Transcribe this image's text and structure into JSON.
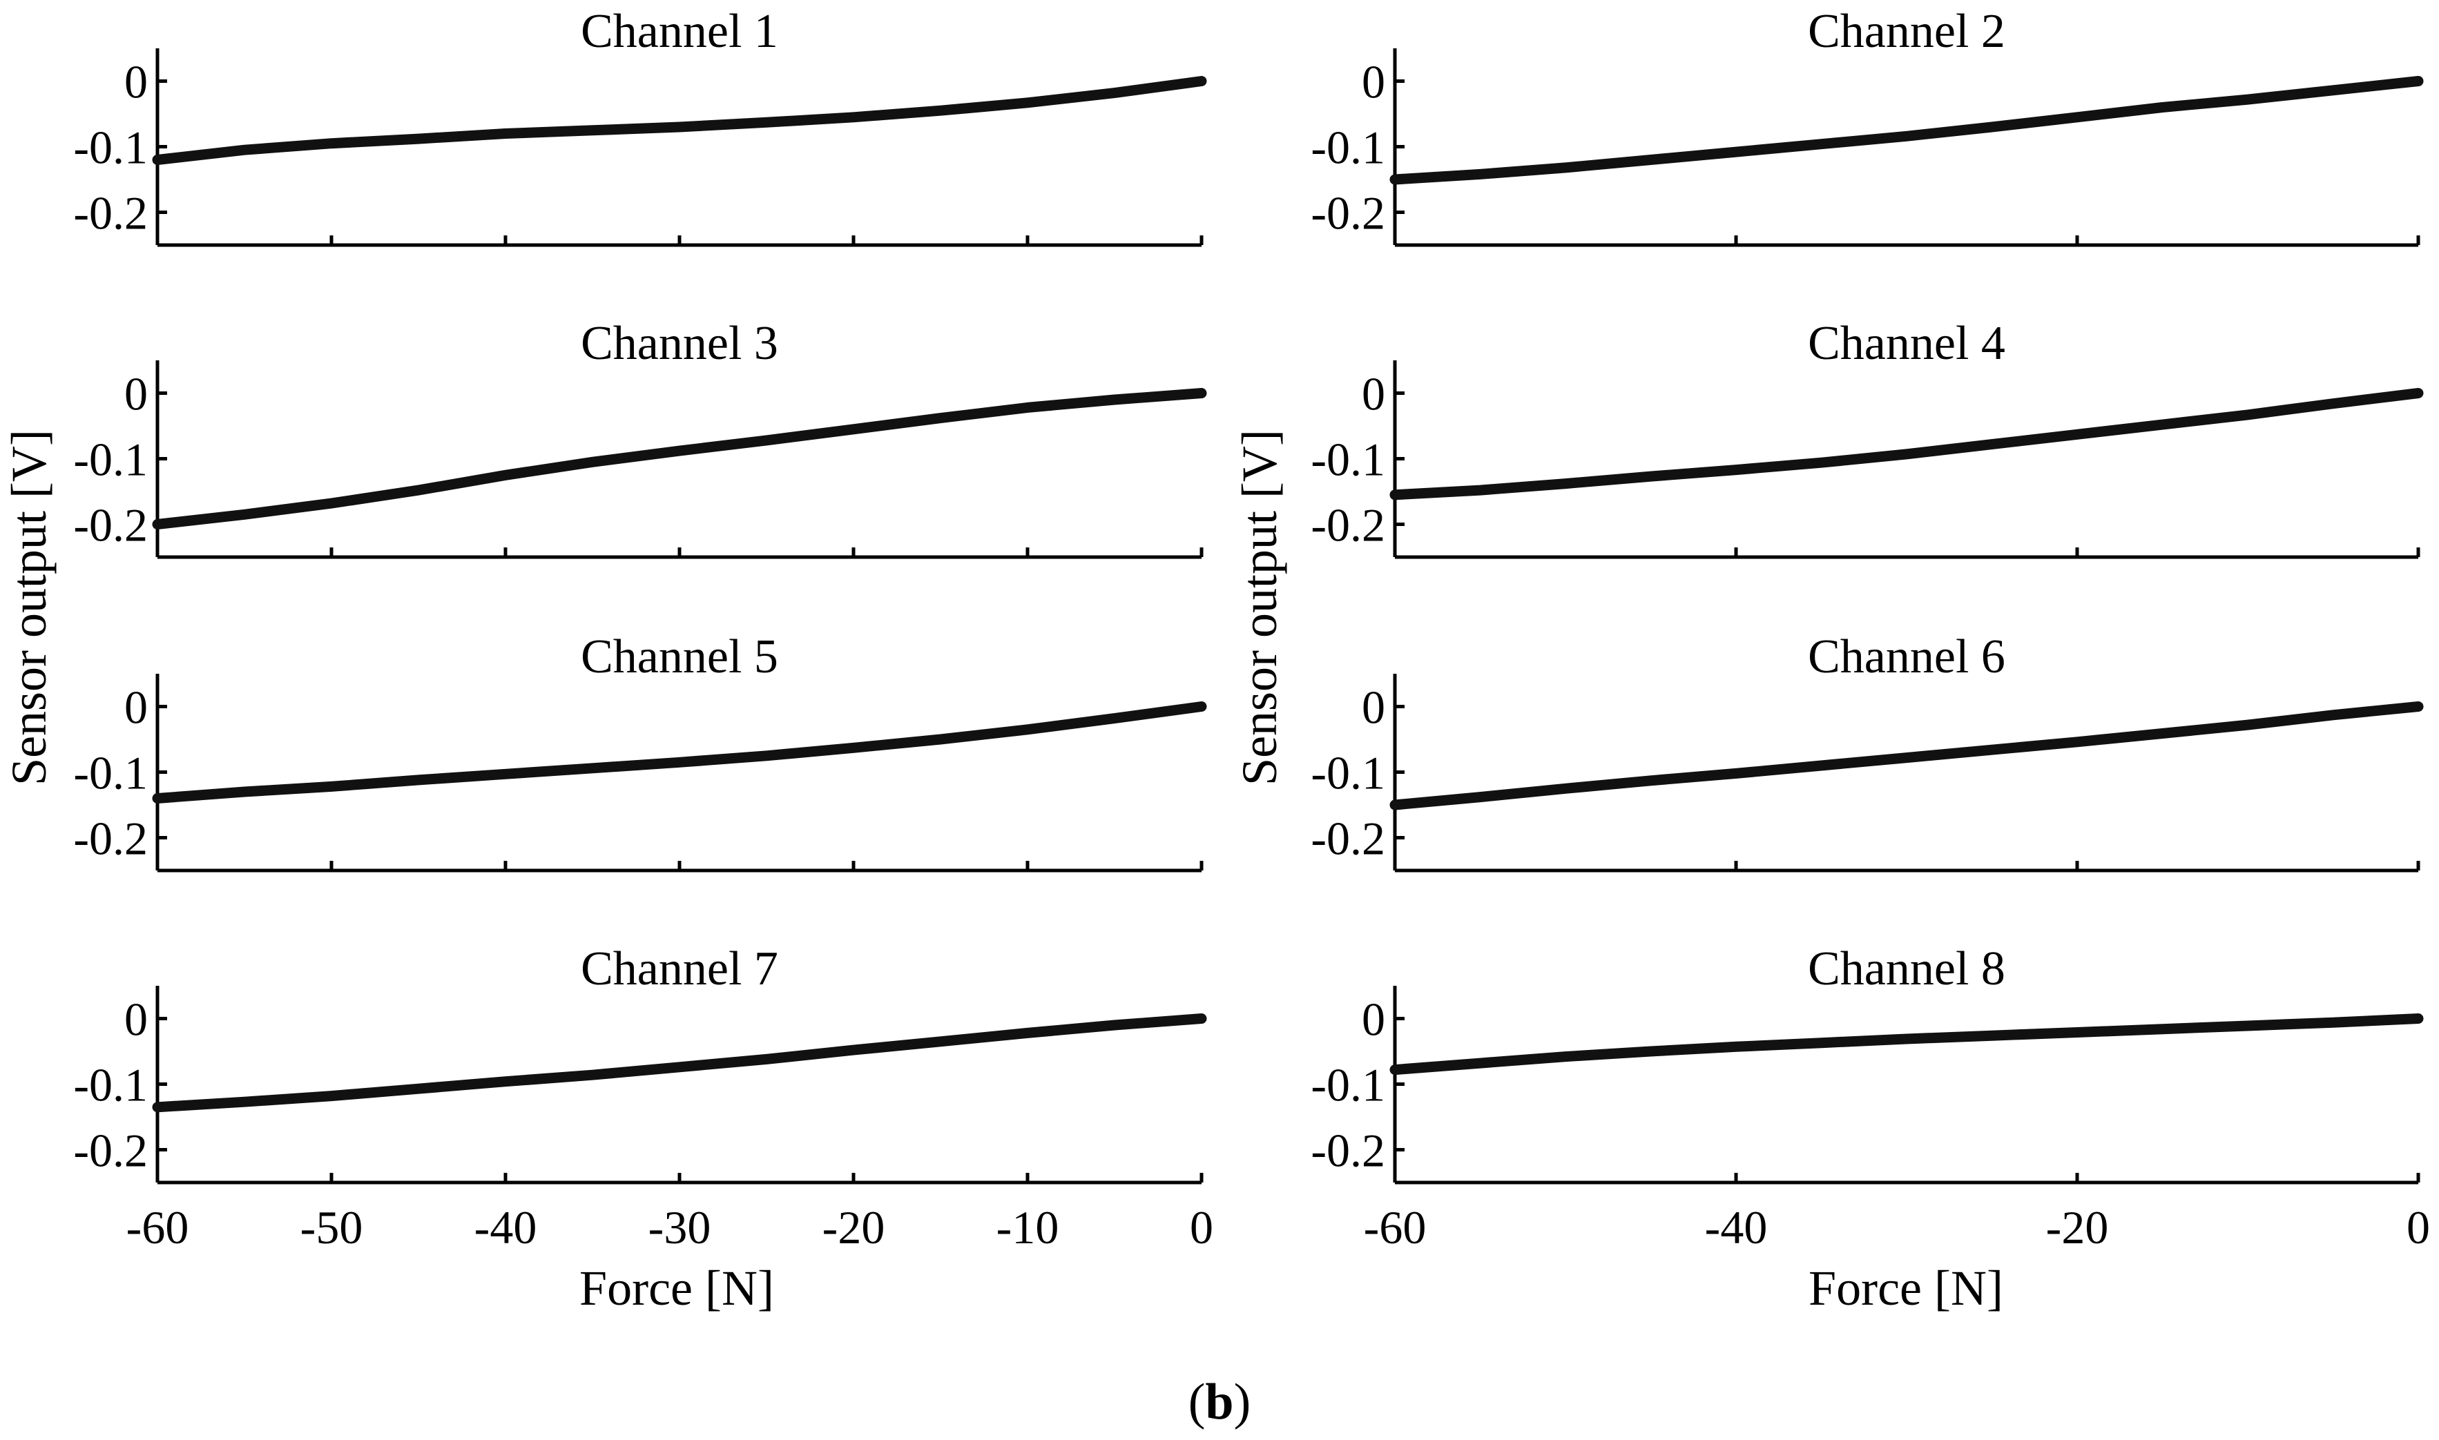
{
  "chart_data": [
    {
      "type": "line",
      "title": "Channel 1",
      "xlim": [
        -60,
        0
      ],
      "ylim": [
        -0.25,
        0.05
      ],
      "xticks": [
        "-60",
        "-50",
        "-40",
        "-30",
        "-20",
        "-10",
        "0"
      ],
      "xtick_values": [
        -60,
        -50,
        -40,
        -30,
        -20,
        -10,
        0
      ],
      "yticks": [
        "0",
        "-0.1",
        "-0.2"
      ],
      "ytick_values": [
        0,
        -0.1,
        -0.2
      ],
      "x": [
        -60,
        -55,
        -50,
        -45,
        -40,
        -35,
        -30,
        -25,
        -20,
        -15,
        -10,
        -5,
        0
      ],
      "y": [
        -0.12,
        -0.105,
        -0.095,
        -0.088,
        -0.08,
        -0.075,
        -0.07,
        -0.063,
        -0.055,
        -0.045,
        -0.033,
        -0.018,
        0
      ]
    },
    {
      "type": "line",
      "title": "Channel 2",
      "xlim": [
        -60,
        0
      ],
      "ylim": [
        -0.25,
        0.05
      ],
      "xticks": [
        "-60",
        "-40",
        "-20",
        "0"
      ],
      "xtick_values": [
        -60,
        -40,
        -20,
        0
      ],
      "yticks": [
        "0",
        "-0.1",
        "-0.2"
      ],
      "ytick_values": [
        0,
        -0.1,
        -0.2
      ],
      "x": [
        -60,
        -55,
        -50,
        -45,
        -40,
        -35,
        -30,
        -25,
        -20,
        -15,
        -10,
        -5,
        0
      ],
      "y": [
        -0.15,
        -0.142,
        -0.132,
        -0.12,
        -0.108,
        -0.096,
        -0.084,
        -0.07,
        -0.055,
        -0.04,
        -0.028,
        -0.014,
        0
      ]
    },
    {
      "type": "line",
      "title": "Channel 3",
      "xlim": [
        -60,
        0
      ],
      "ylim": [
        -0.25,
        0.05
      ],
      "xticks": [
        "-60",
        "-50",
        "-40",
        "-30",
        "-20",
        "-10",
        "0"
      ],
      "xtick_values": [
        -60,
        -50,
        -40,
        -30,
        -20,
        -10,
        0
      ],
      "yticks": [
        "0",
        "-0.1",
        "-0.2"
      ],
      "ytick_values": [
        0,
        -0.1,
        -0.2
      ],
      "x": [
        -60,
        -55,
        -50,
        -45,
        -40,
        -35,
        -30,
        -25,
        -20,
        -15,
        -10,
        -5,
        0
      ],
      "y": [
        -0.2,
        -0.185,
        -0.168,
        -0.148,
        -0.125,
        -0.105,
        -0.088,
        -0.072,
        -0.055,
        -0.038,
        -0.022,
        -0.01,
        0
      ]
    },
    {
      "type": "line",
      "title": "Channel 4",
      "xlim": [
        -60,
        0
      ],
      "ylim": [
        -0.25,
        0.05
      ],
      "xticks": [
        "-60",
        "-40",
        "-20",
        "0"
      ],
      "xtick_values": [
        -60,
        -40,
        -20,
        0
      ],
      "yticks": [
        "0",
        "-0.1",
        "-0.2"
      ],
      "ytick_values": [
        0,
        -0.1,
        -0.2
      ],
      "x": [
        -60,
        -55,
        -50,
        -45,
        -40,
        -35,
        -30,
        -25,
        -20,
        -15,
        -10,
        -5,
        0
      ],
      "y": [
        -0.155,
        -0.148,
        -0.138,
        -0.127,
        -0.117,
        -0.106,
        -0.093,
        -0.078,
        -0.063,
        -0.048,
        -0.033,
        -0.016,
        0
      ]
    },
    {
      "type": "line",
      "title": "Channel 5",
      "xlim": [
        -60,
        0
      ],
      "ylim": [
        -0.25,
        0.05
      ],
      "xticks": [
        "-60",
        "-50",
        "-40",
        "-30",
        "-20",
        "-10",
        "0"
      ],
      "xtick_values": [
        -60,
        -50,
        -40,
        -30,
        -20,
        -10,
        0
      ],
      "yticks": [
        "0",
        "-0.1",
        "-0.2"
      ],
      "ytick_values": [
        0,
        -0.1,
        -0.2
      ],
      "x": [
        -60,
        -55,
        -50,
        -45,
        -40,
        -35,
        -30,
        -25,
        -20,
        -15,
        -10,
        -5,
        0
      ],
      "y": [
        -0.14,
        -0.13,
        -0.122,
        -0.112,
        -0.103,
        -0.094,
        -0.085,
        -0.075,
        -0.063,
        -0.05,
        -0.035,
        -0.018,
        0
      ]
    },
    {
      "type": "line",
      "title": "Channel 6",
      "xlim": [
        -60,
        0
      ],
      "ylim": [
        -0.25,
        0.05
      ],
      "xticks": [
        "-60",
        "-40",
        "-20",
        "0"
      ],
      "xtick_values": [
        -60,
        -40,
        -20,
        0
      ],
      "yticks": [
        "0",
        "-0.1",
        "-0.2"
      ],
      "ytick_values": [
        0,
        -0.1,
        -0.2
      ],
      "x": [
        -60,
        -55,
        -50,
        -45,
        -40,
        -35,
        -30,
        -25,
        -20,
        -15,
        -10,
        -5,
        0
      ],
      "y": [
        -0.15,
        -0.138,
        -0.125,
        -0.113,
        -0.102,
        -0.09,
        -0.078,
        -0.066,
        -0.054,
        -0.041,
        -0.028,
        -0.013,
        0
      ]
    },
    {
      "type": "line",
      "title": "Channel 7",
      "xlim": [
        -60,
        0
      ],
      "ylim": [
        -0.25,
        0.05
      ],
      "xticks": [
        "-60",
        "-50",
        "-40",
        "-30",
        "-20",
        "-10",
        "0"
      ],
      "xtick_values": [
        -60,
        -50,
        -40,
        -30,
        -20,
        -10,
        0
      ],
      "yticks": [
        "0",
        "-0.1",
        "-0.2"
      ],
      "ytick_values": [
        0,
        -0.1,
        -0.2
      ],
      "x": [
        -60,
        -55,
        -50,
        -45,
        -40,
        -35,
        -30,
        -25,
        -20,
        -15,
        -10,
        -5,
        0
      ],
      "y": [
        -0.135,
        -0.127,
        -0.118,
        -0.107,
        -0.096,
        -0.086,
        -0.074,
        -0.062,
        -0.048,
        -0.035,
        -0.022,
        -0.01,
        0
      ]
    },
    {
      "type": "line",
      "title": "Channel 8",
      "xlim": [
        -60,
        0
      ],
      "ylim": [
        -0.25,
        0.05
      ],
      "xticks": [
        "-60",
        "-40",
        "-20",
        "0"
      ],
      "xtick_values": [
        -60,
        -40,
        -20,
        0
      ],
      "yticks": [
        "0",
        "-0.1",
        "-0.2"
      ],
      "ytick_values": [
        0,
        -0.1,
        -0.2
      ],
      "x": [
        -60,
        -55,
        -50,
        -45,
        -40,
        -35,
        -30,
        -25,
        -20,
        -15,
        -10,
        -5,
        0
      ],
      "y": [
        -0.078,
        -0.068,
        -0.058,
        -0.05,
        -0.043,
        -0.037,
        -0.031,
        -0.026,
        -0.021,
        -0.016,
        -0.011,
        -0.006,
        0
      ]
    }
  ],
  "left_column": {
    "ylabel": "Sensor output [V]",
    "xlabel": "Force [N]"
  },
  "right_column": {
    "ylabel": "Sensor output [V]",
    "xlabel": "Force [N]"
  },
  "caption": {
    "open": "(",
    "letter": "b",
    "close": ")"
  }
}
